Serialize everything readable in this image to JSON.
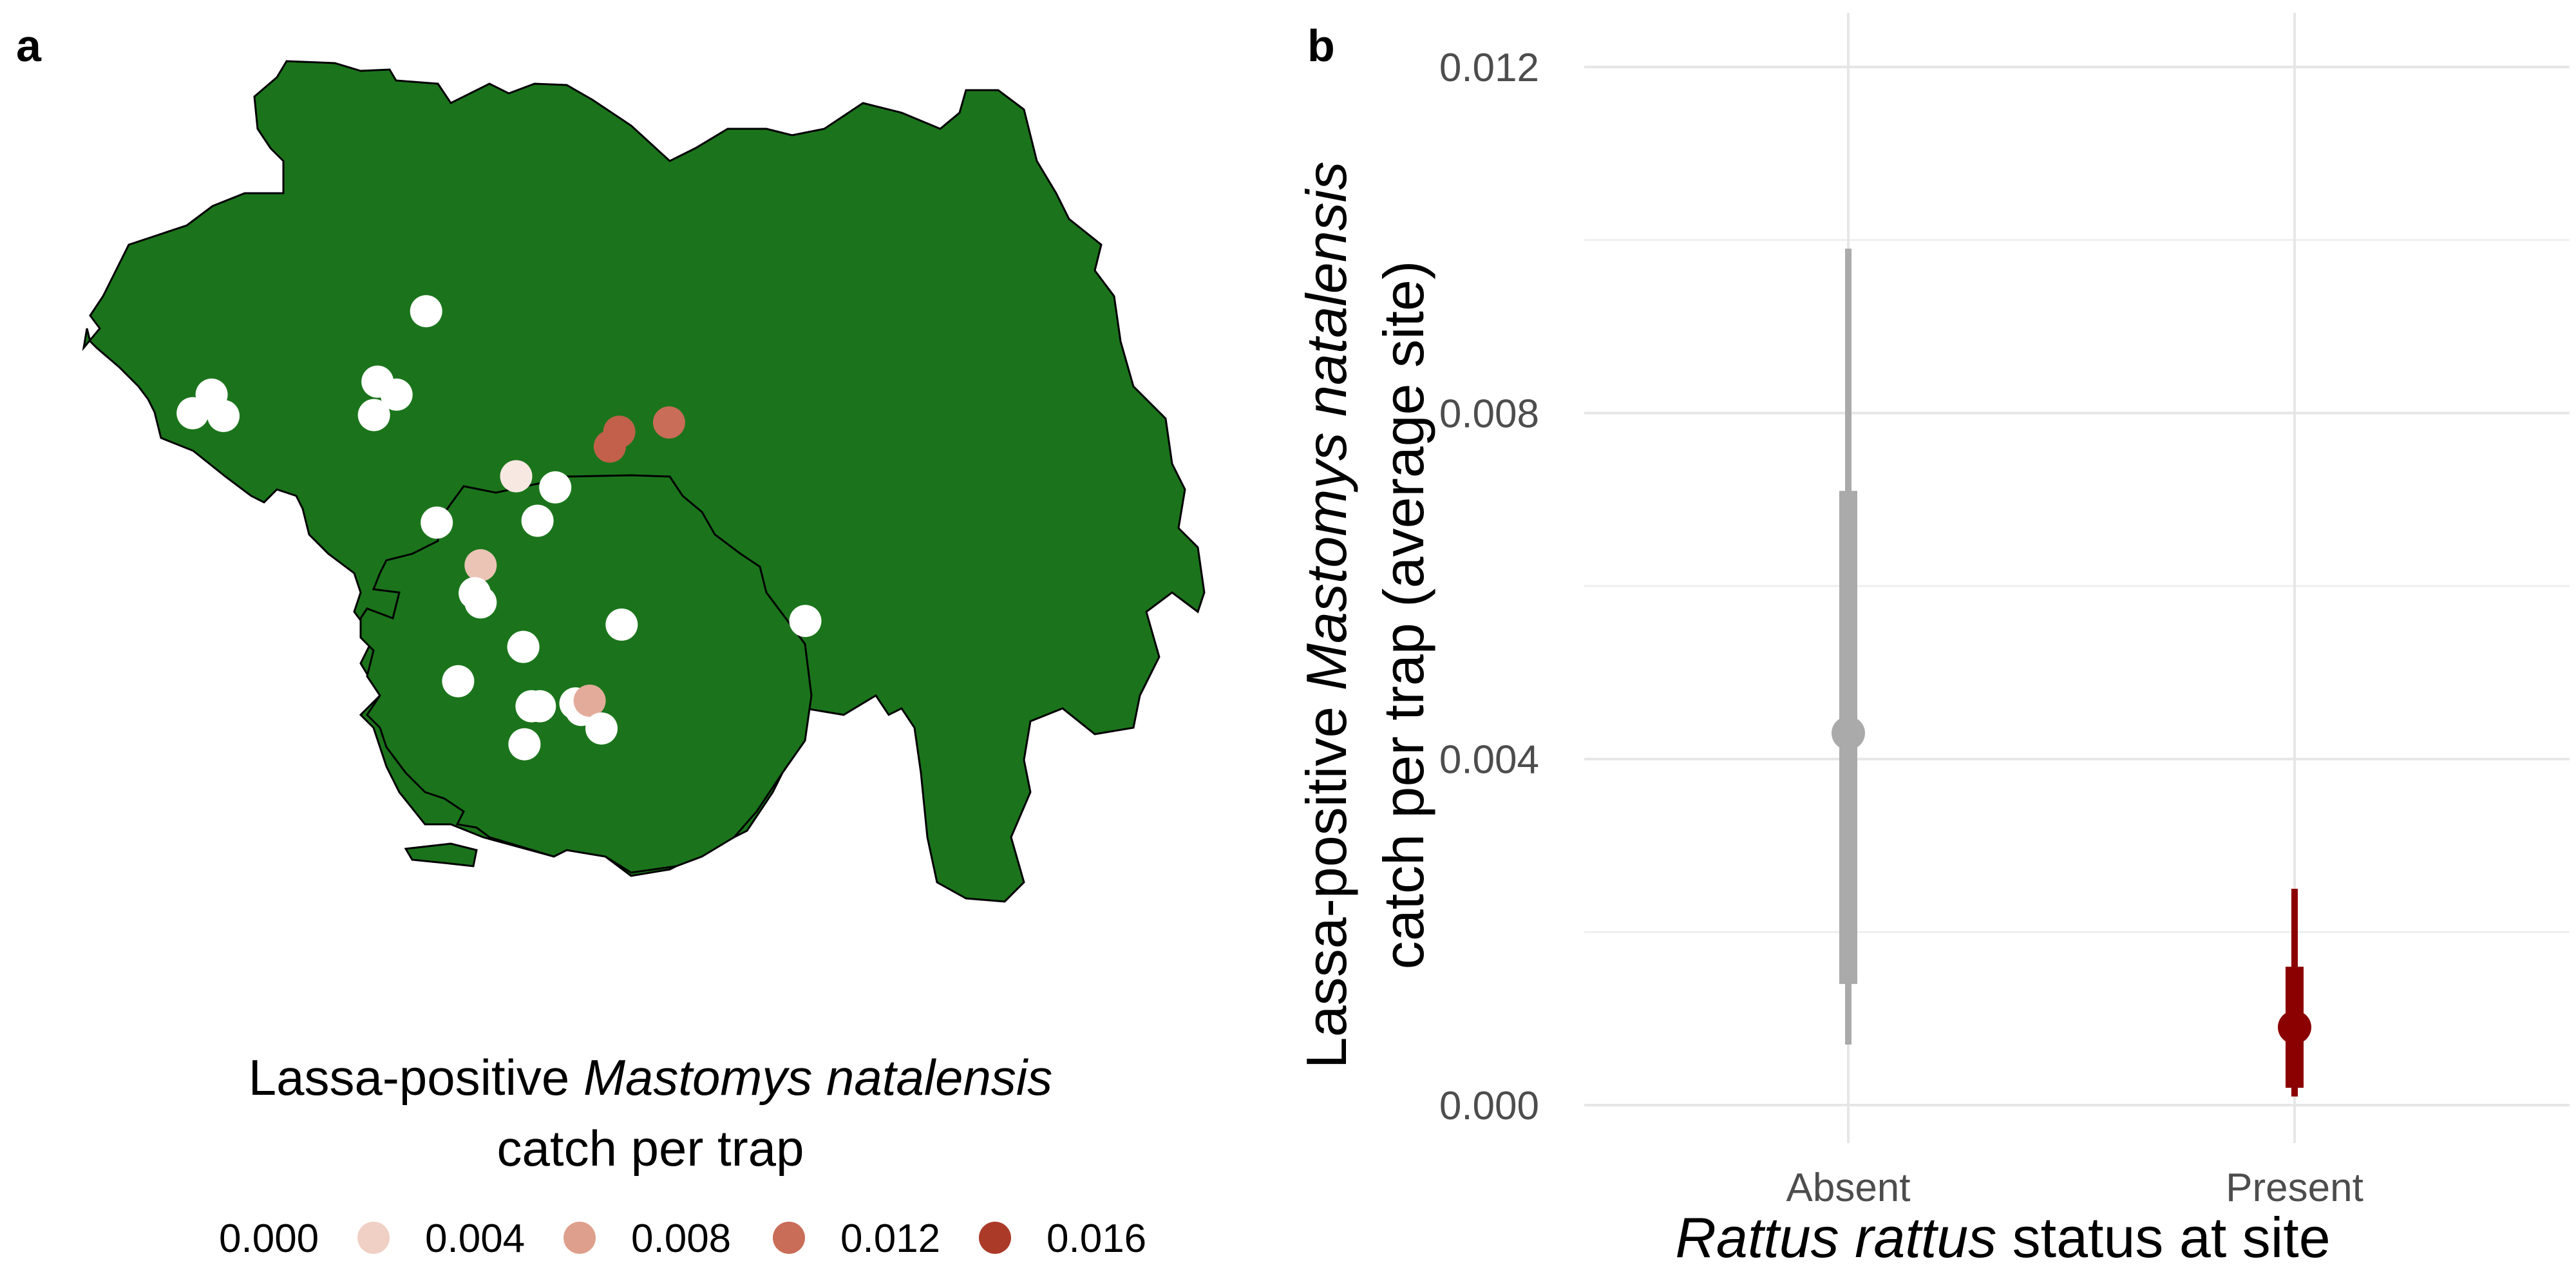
{
  "panel_a": {
    "label": "a",
    "legend": {
      "title_line1_prefix": "Lassa-positive ",
      "title_line1_italic": "Mastomys natalensis",
      "title_line2": "catch per trap",
      "items": [
        {
          "label": "0.000",
          "color": "#ffffff"
        },
        {
          "label": "0.004",
          "color": "#f0d0c4"
        },
        {
          "label": "0.008",
          "color": "#dea08c"
        },
        {
          "label": "0.012",
          "color": "#c96c58"
        },
        {
          "label": "0.016",
          "color": "#ab3a28"
        }
      ]
    },
    "map_fill": "#1b741b",
    "sites": [
      {
        "lon": 0.327,
        "lat": 0.72,
        "v": 0.0
      },
      {
        "lon": 0.146,
        "lat": 0.63,
        "v": 0.0
      },
      {
        "lon": 0.13,
        "lat": 0.61,
        "v": 0.0
      },
      {
        "lon": 0.156,
        "lat": 0.607,
        "v": 0.0
      },
      {
        "lon": 0.286,
        "lat": 0.644,
        "v": 0.0
      },
      {
        "lon": 0.302,
        "lat": 0.63,
        "v": 0.0
      },
      {
        "lon": 0.283,
        "lat": 0.608,
        "v": 0.0
      },
      {
        "lon": 0.436,
        "lat": 0.53,
        "v": 0.0
      },
      {
        "lon": 0.49,
        "lat": 0.59,
        "v": 0.013
      },
      {
        "lon": 0.532,
        "lat": 0.6,
        "v": 0.012
      },
      {
        "lon": 0.482,
        "lat": 0.574,
        "v": 0.013
      },
      {
        "lon": 0.403,
        "lat": 0.542,
        "v": 0.002
      },
      {
        "lon": 0.336,
        "lat": 0.492,
        "v": 0.0
      },
      {
        "lon": 0.421,
        "lat": 0.494,
        "v": 0.0
      },
      {
        "lon": 0.373,
        "lat": 0.446,
        "v": 0.005
      },
      {
        "lon": 0.368,
        "lat": 0.416,
        "v": 0.0
      },
      {
        "lon": 0.373,
        "lat": 0.406,
        "v": 0.0
      },
      {
        "lon": 0.492,
        "lat": 0.382,
        "v": 0.0
      },
      {
        "lon": 0.409,
        "lat": 0.358,
        "v": 0.0
      },
      {
        "lon": 0.354,
        "lat": 0.321,
        "v": 0.0
      },
      {
        "lon": 0.453,
        "lat": 0.297,
        "v": 0.0
      },
      {
        "lon": 0.458,
        "lat": 0.29,
        "v": 0.0
      },
      {
        "lon": 0.465,
        "lat": 0.3,
        "v": 0.007
      },
      {
        "lon": 0.416,
        "lat": 0.294,
        "v": 0.0
      },
      {
        "lon": 0.423,
        "lat": 0.294,
        "v": 0.0
      },
      {
        "lon": 0.475,
        "lat": 0.27,
        "v": 0.0
      },
      {
        "lon": 0.41,
        "lat": 0.253,
        "v": 0.0
      },
      {
        "lon": 0.647,
        "lat": 0.386,
        "v": 0.0
      }
    ]
  },
  "chart_data": {
    "type": "scatter",
    "panel_label": "b",
    "categories": [
      "Absent",
      "Present"
    ],
    "xlabel_italic": "Rattus rattus",
    "xlabel_rest": " status at site",
    "ylabel_line1_prefix": "Lassa-positive ",
    "ylabel_line1_italic": "Mastomys natalensis",
    "ylabel_line2": "catch per trap (average site)",
    "ylim": [
      0,
      0.0125
    ],
    "yticks": [
      "0.000",
      "0.004",
      "0.008",
      "0.012"
    ],
    "series": [
      {
        "category": "Absent",
        "color": "#aaaaaa",
        "estimate": 0.0043,
        "inner": [
          0.0014,
          0.0071
        ],
        "outer": [
          0.0007,
          0.0099
        ]
      },
      {
        "category": "Present",
        "color": "#8b0000",
        "estimate": 0.0009,
        "inner": [
          0.0002,
          0.0016
        ],
        "outer": [
          0.0001,
          0.0025
        ]
      }
    ],
    "grid": true
  }
}
